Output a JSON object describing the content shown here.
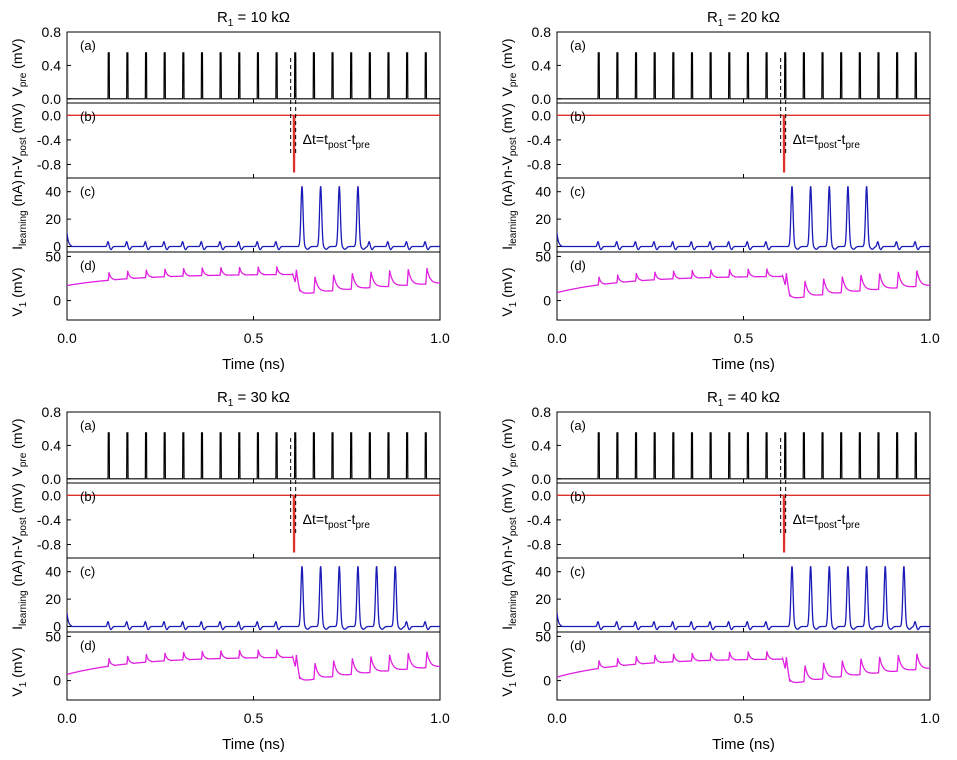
{
  "chart_data": [
    {
      "type": "line",
      "title": "R₁ = 10 kΩ",
      "title_base": "R",
      "title_sub": "1",
      "title_rest": " = 10 kΩ",
      "xlabel": "Time (ns)",
      "xlim": [
        0.0,
        1.0
      ],
      "xticks": [
        "0.0",
        "0.5",
        "1.0"
      ],
      "pre_spike_times_ns": [
        0.112,
        0.162,
        0.212,
        0.262,
        0.312,
        0.362,
        0.412,
        0.462,
        0.512,
        0.562,
        0.612,
        0.662,
        0.712,
        0.762,
        0.812,
        0.862,
        0.912,
        0.962
      ],
      "post_spike_time_ns": 0.605,
      "delta_t_label": "Δt=tpost-tpre",
      "learning_peak_times_ns": [
        0.63,
        0.68,
        0.73,
        0.78
      ],
      "panels": [
        {
          "tag": "(a)",
          "ylabel": "Vpre (mV)",
          "ylim": [
            -0.05,
            0.8
          ],
          "yticks": [
            "0.0",
            "0.4",
            "0.8"
          ],
          "ytick_values": [
            0.0,
            0.4,
            0.8
          ],
          "spike_height": 0.55,
          "color": "#000000"
        },
        {
          "tag": "(b)",
          "ylabel": "n-Vpost (mV)",
          "ylim": [
            -1.02,
            0.2
          ],
          "yticks": [
            "0.0",
            "-0.4",
            "-0.8"
          ],
          "ytick_values": [
            0.0,
            -0.4,
            -0.8
          ],
          "spike_depth": -0.92,
          "color": "#e0302a"
        },
        {
          "tag": "(c)",
          "ylabel": "Ilearning (nA)",
          "ylim": [
            -4,
            50
          ],
          "yticks": [
            "0",
            "20",
            "40"
          ],
          "ytick_values": [
            0,
            20,
            40
          ],
          "peak": 44,
          "color": "#1a1ab8"
        },
        {
          "tag": "(d)",
          "ylabel": "V1 (mV)",
          "ylim": [
            -22,
            55
          ],
          "yticks": [
            "0",
            "50"
          ],
          "ytick_values": [
            0,
            50
          ],
          "color": "#e020e0"
        }
      ]
    },
    {
      "type": "line",
      "title": "R₁ = 20 kΩ",
      "title_base": "R",
      "title_sub": "1",
      "title_rest": " = 20 kΩ",
      "xlabel": "Time (ns)",
      "xlim": [
        0.0,
        1.0
      ],
      "xticks": [
        "0.0",
        "0.5",
        "1.0"
      ],
      "pre_spike_times_ns": [
        0.112,
        0.162,
        0.212,
        0.262,
        0.312,
        0.362,
        0.412,
        0.462,
        0.512,
        0.562,
        0.612,
        0.662,
        0.712,
        0.762,
        0.812,
        0.862,
        0.912,
        0.962
      ],
      "post_spike_time_ns": 0.605,
      "delta_t_label": "Δt=tpost-tpre",
      "learning_peak_times_ns": [
        0.63,
        0.68,
        0.73,
        0.78,
        0.83
      ],
      "panels": [
        {
          "tag": "(a)",
          "ylabel": "Vpre (mV)",
          "ylim": [
            -0.05,
            0.8
          ],
          "yticks": [
            "0.0",
            "0.4",
            "0.8"
          ],
          "ytick_values": [
            0.0,
            0.4,
            0.8
          ],
          "spike_height": 0.55,
          "color": "#000000"
        },
        {
          "tag": "(b)",
          "ylabel": "n-Vpost (mV)",
          "ylim": [
            -1.02,
            0.2
          ],
          "yticks": [
            "0.0",
            "-0.4",
            "-0.8"
          ],
          "ytick_values": [
            0.0,
            -0.4,
            -0.8
          ],
          "spike_depth": -0.92,
          "color": "#e0302a"
        },
        {
          "tag": "(c)",
          "ylabel": "Ilearning (nA)",
          "ylim": [
            -4,
            50
          ],
          "yticks": [
            "0",
            "20",
            "40"
          ],
          "ytick_values": [
            0,
            20,
            40
          ],
          "peak": 44,
          "color": "#1a1ab8"
        },
        {
          "tag": "(d)",
          "ylabel": "V1 (mV)",
          "ylim": [
            -22,
            55
          ],
          "yticks": [
            "0",
            "50"
          ],
          "ytick_values": [
            0,
            50
          ],
          "color": "#e020e0"
        }
      ]
    },
    {
      "type": "line",
      "title": "R₁ = 30 kΩ",
      "title_base": "R",
      "title_sub": "1",
      "title_rest": " = 30 kΩ",
      "xlabel": "Time (ns)",
      "xlim": [
        0.0,
        1.0
      ],
      "xticks": [
        "0.0",
        "0.5",
        "1.0"
      ],
      "pre_spike_times_ns": [
        0.112,
        0.162,
        0.212,
        0.262,
        0.312,
        0.362,
        0.412,
        0.462,
        0.512,
        0.562,
        0.612,
        0.662,
        0.712,
        0.762,
        0.812,
        0.862,
        0.912,
        0.962
      ],
      "post_spike_time_ns": 0.605,
      "delta_t_label": "Δt=tpost-tpre",
      "learning_peak_times_ns": [
        0.63,
        0.68,
        0.73,
        0.78,
        0.83,
        0.88
      ],
      "panels": [
        {
          "tag": "(a)",
          "ylabel": "Vpre (mV)",
          "ylim": [
            -0.05,
            0.8
          ],
          "yticks": [
            "0.0",
            "0.4",
            "0.8"
          ],
          "ytick_values": [
            0.0,
            0.4,
            0.8
          ],
          "spike_height": 0.55,
          "color": "#000000"
        },
        {
          "tag": "(b)",
          "ylabel": "n-Vpost (mV)",
          "ylim": [
            -1.02,
            0.2
          ],
          "yticks": [
            "0.0",
            "-0.4",
            "-0.8"
          ],
          "ytick_values": [
            0.0,
            -0.4,
            -0.8
          ],
          "spike_depth": -0.92,
          "color": "#e0302a"
        },
        {
          "tag": "(c)",
          "ylabel": "Ilearning (nA)",
          "ylim": [
            -4,
            50
          ],
          "yticks": [
            "0",
            "20",
            "40"
          ],
          "ytick_values": [
            0,
            20,
            40
          ],
          "peak": 44,
          "color": "#1a1ab8"
        },
        {
          "tag": "(d)",
          "ylabel": "V1 (mV)",
          "ylim": [
            -22,
            55
          ],
          "yticks": [
            "0",
            "50"
          ],
          "ytick_values": [
            0,
            50
          ],
          "color": "#e020e0"
        }
      ]
    },
    {
      "type": "line",
      "title": "R₁ = 40 kΩ",
      "title_base": "R",
      "title_sub": "1",
      "title_rest": " = 40 kΩ",
      "xlabel": "Time (ns)",
      "xlim": [
        0.0,
        1.0
      ],
      "xticks": [
        "0.0",
        "0.5",
        "1.0"
      ],
      "pre_spike_times_ns": [
        0.112,
        0.162,
        0.212,
        0.262,
        0.312,
        0.362,
        0.412,
        0.462,
        0.512,
        0.562,
        0.612,
        0.662,
        0.712,
        0.762,
        0.812,
        0.862,
        0.912,
        0.962
      ],
      "post_spike_time_ns": 0.605,
      "delta_t_label": "Δt=tpost-tpre",
      "learning_peak_times_ns": [
        0.63,
        0.68,
        0.73,
        0.78,
        0.83,
        0.88,
        0.93
      ],
      "panels": [
        {
          "tag": "(a)",
          "ylabel": "Vpre (mV)",
          "ylim": [
            -0.05,
            0.8
          ],
          "yticks": [
            "0.0",
            "0.4",
            "0.8"
          ],
          "ytick_values": [
            0.0,
            0.4,
            0.8
          ],
          "spike_height": 0.55,
          "color": "#000000"
        },
        {
          "tag": "(b)",
          "ylabel": "n-Vpost (mV)",
          "ylim": [
            -1.02,
            0.2
          ],
          "yticks": [
            "0.0",
            "-0.4",
            "-0.8"
          ],
          "ytick_values": [
            0.0,
            -0.4,
            -0.8
          ],
          "spike_depth": -0.92,
          "color": "#e0302a"
        },
        {
          "tag": "(c)",
          "ylabel": "Ilearning (nA)",
          "ylim": [
            -4,
            50
          ],
          "yticks": [
            "0",
            "20",
            "40"
          ],
          "ytick_values": [
            0,
            20,
            40
          ],
          "peak": 44,
          "color": "#1a1ab8"
        },
        {
          "tag": "(d)",
          "ylabel": "V1 (mV)",
          "ylim": [
            -22,
            55
          ],
          "yticks": [
            "0",
            "50"
          ],
          "ytick_values": [
            0,
            50
          ],
          "color": "#e020e0"
        }
      ]
    }
  ]
}
